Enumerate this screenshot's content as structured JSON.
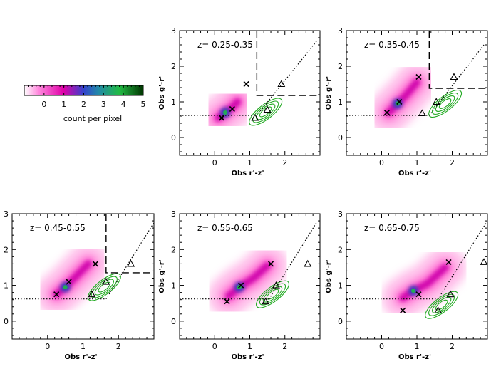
{
  "colorbar": {
    "label": "count per pixel",
    "ticks": [
      "0",
      "1",
      "2",
      "3",
      "4",
      "5"
    ],
    "range": [
      -1,
      5
    ],
    "colors": [
      "#ffffff",
      "#ff66cc",
      "#ee00aa",
      "#3355cc",
      "#2288aa",
      "#22aa44",
      "#004400"
    ]
  },
  "chart_data": [
    {
      "type": "scatter",
      "title": "z= 0.25-0.35",
      "xlabel": "Obs r'-z'",
      "ylabel": "Obs g'-r'",
      "xlim": [
        -1,
        3
      ],
      "ylim": [
        -0.5,
        3
      ],
      "xticks": [
        "0",
        "1",
        "2"
      ],
      "yticks": [
        "0",
        "1",
        "2",
        "3"
      ],
      "density_ridge": [
        [
          0.1,
          0.55
        ],
        [
          0.3,
          0.7
        ],
        [
          0.5,
          0.85
        ],
        [
          0.65,
          1.0
        ]
      ],
      "crosses": [
        [
          0.2,
          0.55
        ],
        [
          0.5,
          0.8
        ],
        [
          0.9,
          1.5
        ]
      ],
      "triangles": [
        [
          1.15,
          0.55
        ],
        [
          1.5,
          0.78
        ],
        [
          1.9,
          1.5
        ]
      ],
      "green_contour_center": [
        1.45,
        0.72
      ],
      "cut_x": 1.2,
      "cut_y": 1.18,
      "hline_y": 0.62,
      "diag_line": [
        [
          1.2,
          0.62
        ],
        [
          2.9,
          2.7
        ]
      ]
    },
    {
      "type": "scatter",
      "title": "z= 0.35-0.45",
      "xlabel": "Obs r'-z'",
      "ylabel": "Obs g'-r'",
      "xlim": [
        -1,
        3
      ],
      "ylim": [
        -0.5,
        3
      ],
      "xticks": [
        "0",
        "1",
        "2"
      ],
      "yticks": [
        "0",
        "1",
        "2",
        "3"
      ],
      "density_ridge": [
        [
          0.2,
          0.7
        ],
        [
          0.45,
          0.95
        ],
        [
          0.7,
          1.2
        ],
        [
          1.0,
          1.55
        ]
      ],
      "crosses": [
        [
          0.15,
          0.7
        ],
        [
          0.5,
          1.0
        ],
        [
          1.05,
          1.7
        ]
      ],
      "triangles": [
        [
          1.15,
          0.68
        ],
        [
          1.55,
          1.0
        ],
        [
          2.05,
          1.7
        ]
      ],
      "green_contour_center": [
        1.8,
        0.95
      ],
      "cut_x": 1.35,
      "cut_y": 1.38,
      "hline_y": 0.62,
      "diag_line": [
        [
          1.35,
          0.62
        ],
        [
          2.9,
          2.6
        ]
      ]
    },
    {
      "type": "scatter",
      "title": "z= 0.45-0.55",
      "xlabel": "Obs r'-z'",
      "ylabel": "Obs g'-r'",
      "xlim": [
        -1,
        3
      ],
      "ylim": [
        -0.5,
        3
      ],
      "xticks": [
        "0",
        "1",
        "2"
      ],
      "yticks": [
        "0",
        "1",
        "2",
        "3"
      ],
      "density_ridge": [
        [
          0.25,
          0.75
        ],
        [
          0.5,
          0.95
        ],
        [
          0.8,
          1.25
        ],
        [
          1.15,
          1.6
        ]
      ],
      "crosses": [
        [
          0.25,
          0.75
        ],
        [
          0.6,
          1.1
        ],
        [
          1.35,
          1.6
        ]
      ],
      "triangles": [
        [
          1.25,
          0.75
        ],
        [
          1.65,
          1.1
        ],
        [
          2.35,
          1.6
        ]
      ],
      "green_contour_center": [
        1.6,
        0.95
      ],
      "cut_x": 1.65,
      "cut_y": 1.35,
      "hline_y": 0.62,
      "diag_line": [
        [
          1.65,
          0.62
        ],
        [
          3.0,
          2.75
        ]
      ]
    },
    {
      "type": "scatter",
      "title": "z= 0.55-0.65",
      "xlabel": "Obs r'-z'",
      "ylabel": "Obs g'-r'",
      "xlim": [
        -1,
        3
      ],
      "ylim": [
        -0.5,
        3
      ],
      "xticks": [
        "0",
        "1",
        "2"
      ],
      "yticks": [
        "0",
        "1",
        "2",
        "3"
      ],
      "density_ridge": [
        [
          0.4,
          0.7
        ],
        [
          0.7,
          0.95
        ],
        [
          1.1,
          1.2
        ],
        [
          1.5,
          1.55
        ]
      ],
      "crosses": [
        [
          0.35,
          0.55
        ],
        [
          0.75,
          1.0
        ],
        [
          1.6,
          1.6
        ]
      ],
      "triangles": [
        [
          1.45,
          0.55
        ],
        [
          1.75,
          1.0
        ],
        [
          2.65,
          1.6
        ]
      ],
      "green_contour_center": [
        1.65,
        0.75
      ],
      "cut_x": null,
      "cut_y": null,
      "hline_y": 0.62,
      "diag_line": [
        [
          1.55,
          0.62
        ],
        [
          2.9,
          2.75
        ]
      ]
    },
    {
      "type": "scatter",
      "title": "z= 0.65-0.75",
      "xlabel": "Obs r'-z'",
      "ylabel": "Obs g'-r'",
      "xlim": [
        -1,
        3
      ],
      "ylim": [
        -0.5,
        3
      ],
      "xticks": [
        "0",
        "1",
        "2"
      ],
      "yticks": [
        "0",
        "1",
        "2",
        "3"
      ],
      "density_ridge": [
        [
          0.6,
          0.65
        ],
        [
          0.9,
          0.85
        ],
        [
          1.3,
          1.05
        ],
        [
          1.8,
          1.5
        ]
      ],
      "crosses": [
        [
          0.6,
          0.3
        ],
        [
          1.05,
          0.75
        ],
        [
          1.9,
          1.65
        ]
      ],
      "triangles": [
        [
          1.6,
          0.3
        ],
        [
          1.95,
          0.75
        ],
        [
          2.9,
          1.65
        ]
      ],
      "green_contour_center": [
        1.7,
        0.45
      ],
      "cut_x": null,
      "cut_y": null,
      "hline_y": 0.62,
      "diag_line": [
        [
          1.6,
          0.62
        ],
        [
          3.0,
          2.8
        ]
      ]
    }
  ]
}
